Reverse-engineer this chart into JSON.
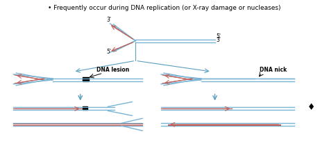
{
  "title": "• Frequently occur during DNA replication (or X-ray damage or nucleases)",
  "title_fontsize": 6.5,
  "bg_color": "#ffffff",
  "blue": "#7ab4d4",
  "red": "#c0605a",
  "dark_blue": "#5a9fc0",
  "text_color": "#000000",
  "lw": 1.0
}
